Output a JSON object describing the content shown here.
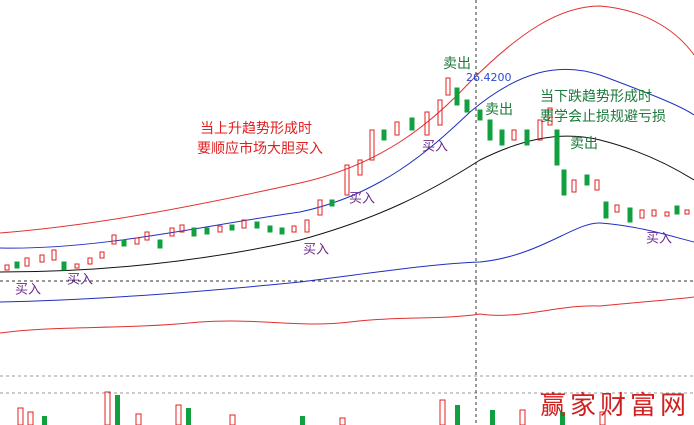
{
  "annotations": {
    "uptrend": [
      "当上升趋势形成时",
      "要顺应市场大胆买入"
    ],
    "downtrend": [
      "当下跌趋势形成时",
      "要学会止损规避亏损"
    ],
    "buy_labels": [
      "买入",
      "买入",
      "买入",
      "买入",
      "买入",
      "买入"
    ],
    "sell_labels": [
      "卖出",
      "卖出",
      "卖出"
    ],
    "price_label": "26.4200",
    "watermark": "赢家财富网"
  }
}
